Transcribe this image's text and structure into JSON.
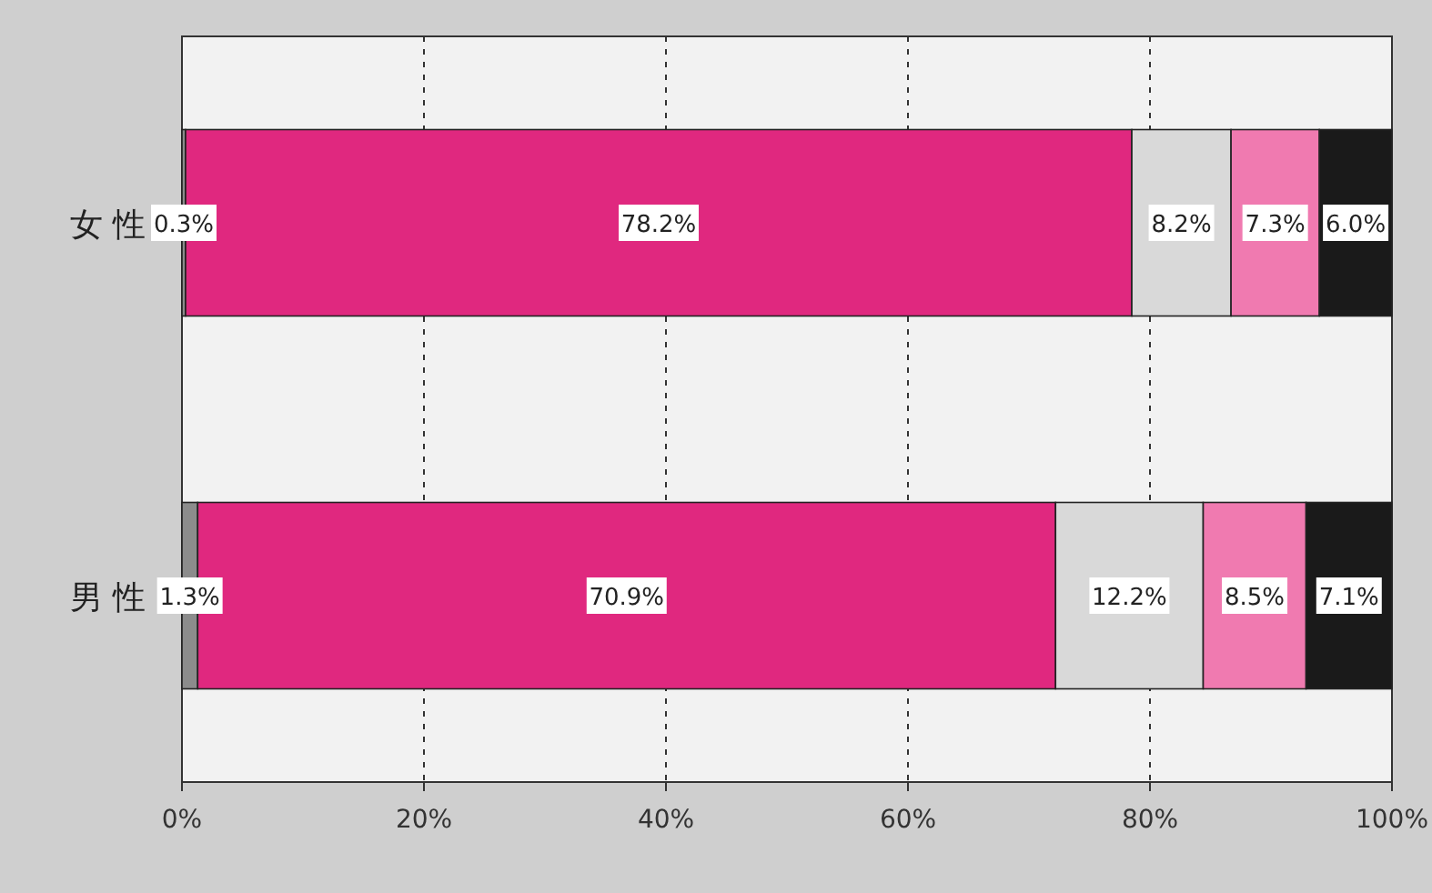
{
  "chart_data": {
    "type": "bar",
    "orientation": "horizontal",
    "stacked": true,
    "categories": [
      "女 性",
      "男 性"
    ],
    "series": [
      {
        "color": "#8c8c8c",
        "values": [
          0.3,
          1.3
        ],
        "value_labels": [
          "0.3%",
          "1.3%"
        ]
      },
      {
        "color": "#e0287f",
        "values": [
          78.2,
          70.9
        ],
        "value_labels": [
          "78.2%",
          "70.9%"
        ]
      },
      {
        "color": "#d9d9d9",
        "values": [
          8.2,
          12.2
        ],
        "value_labels": [
          "8.2%",
          "12.2%"
        ]
      },
      {
        "color": "#f07ab0",
        "values": [
          7.3,
          8.5
        ],
        "value_labels": [
          "7.3%",
          "8.5%"
        ]
      },
      {
        "color": "#1a1a1a",
        "values": [
          6.0,
          7.1
        ],
        "value_labels": [
          "6.0%",
          "7.1%"
        ]
      }
    ],
    "xlim": [
      0,
      100
    ],
    "xticks": [
      {
        "value": 0,
        "label": "0%"
      },
      {
        "value": 20,
        "label": "20%"
      },
      {
        "value": 40,
        "label": "40%"
      },
      {
        "value": 60,
        "label": "60%"
      },
      {
        "value": 80,
        "label": "80%"
      },
      {
        "value": 100,
        "label": "100%"
      }
    ],
    "grid": "x"
  }
}
